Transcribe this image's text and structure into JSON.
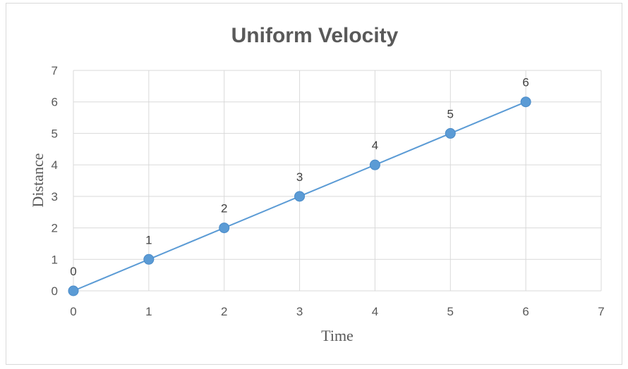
{
  "chart_data": {
    "type": "scatter",
    "title": "Uniform Velocity",
    "xlabel": "Time",
    "ylabel": "Distance",
    "xlim": [
      0,
      7
    ],
    "ylim": [
      0,
      7
    ],
    "xticks": [
      "0",
      "1",
      "2",
      "3",
      "4",
      "5",
      "6",
      "7"
    ],
    "yticks": [
      "0",
      "1",
      "2",
      "3",
      "4",
      "5",
      "6",
      "7"
    ],
    "grid": true,
    "legend": "none",
    "series": [
      {
        "x": [
          0,
          1,
          2,
          3,
          4,
          5,
          6
        ],
        "y": [
          0,
          1,
          2,
          3,
          4,
          5,
          6
        ],
        "data_labels": [
          "0",
          "1",
          "2",
          "3",
          "4",
          "5",
          "6"
        ],
        "color": "#5b9bd5",
        "mode": "lines+markers"
      }
    ]
  }
}
